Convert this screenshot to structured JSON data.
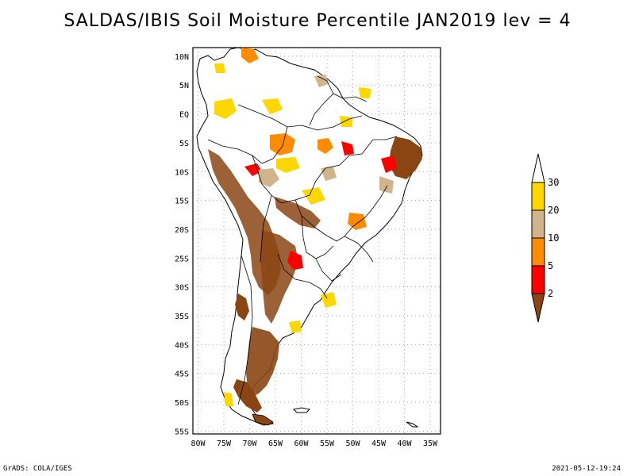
{
  "title": "SALDAS/IBIS Soil Moisture Percentile JAN2019 lev = 4",
  "map": {
    "lat_labels": [
      "10N",
      "5N",
      "EQ",
      "5S",
      "10S",
      "15S",
      "20S",
      "25S",
      "30S",
      "35S",
      "40S",
      "45S",
      "50S",
      "55S"
    ],
    "lon_labels": [
      "80W",
      "75W",
      "70W",
      "65W",
      "60W",
      "55W",
      "50W",
      "45W",
      "40W",
      "35W"
    ]
  },
  "legend": {
    "levels": [
      "2",
      "5",
      "10",
      "20",
      "30"
    ],
    "colors": {
      "below_2": "#8b4513",
      "2_5": "#ff0000",
      "5_10": "#ff8c00",
      "10_20": "#d2b48c",
      "20_30": "#ffd700",
      "above_30": "#ffffff"
    }
  },
  "footer": {
    "left": "GrADS: COLA/IGES",
    "right": "2021-05-12-19:24"
  }
}
